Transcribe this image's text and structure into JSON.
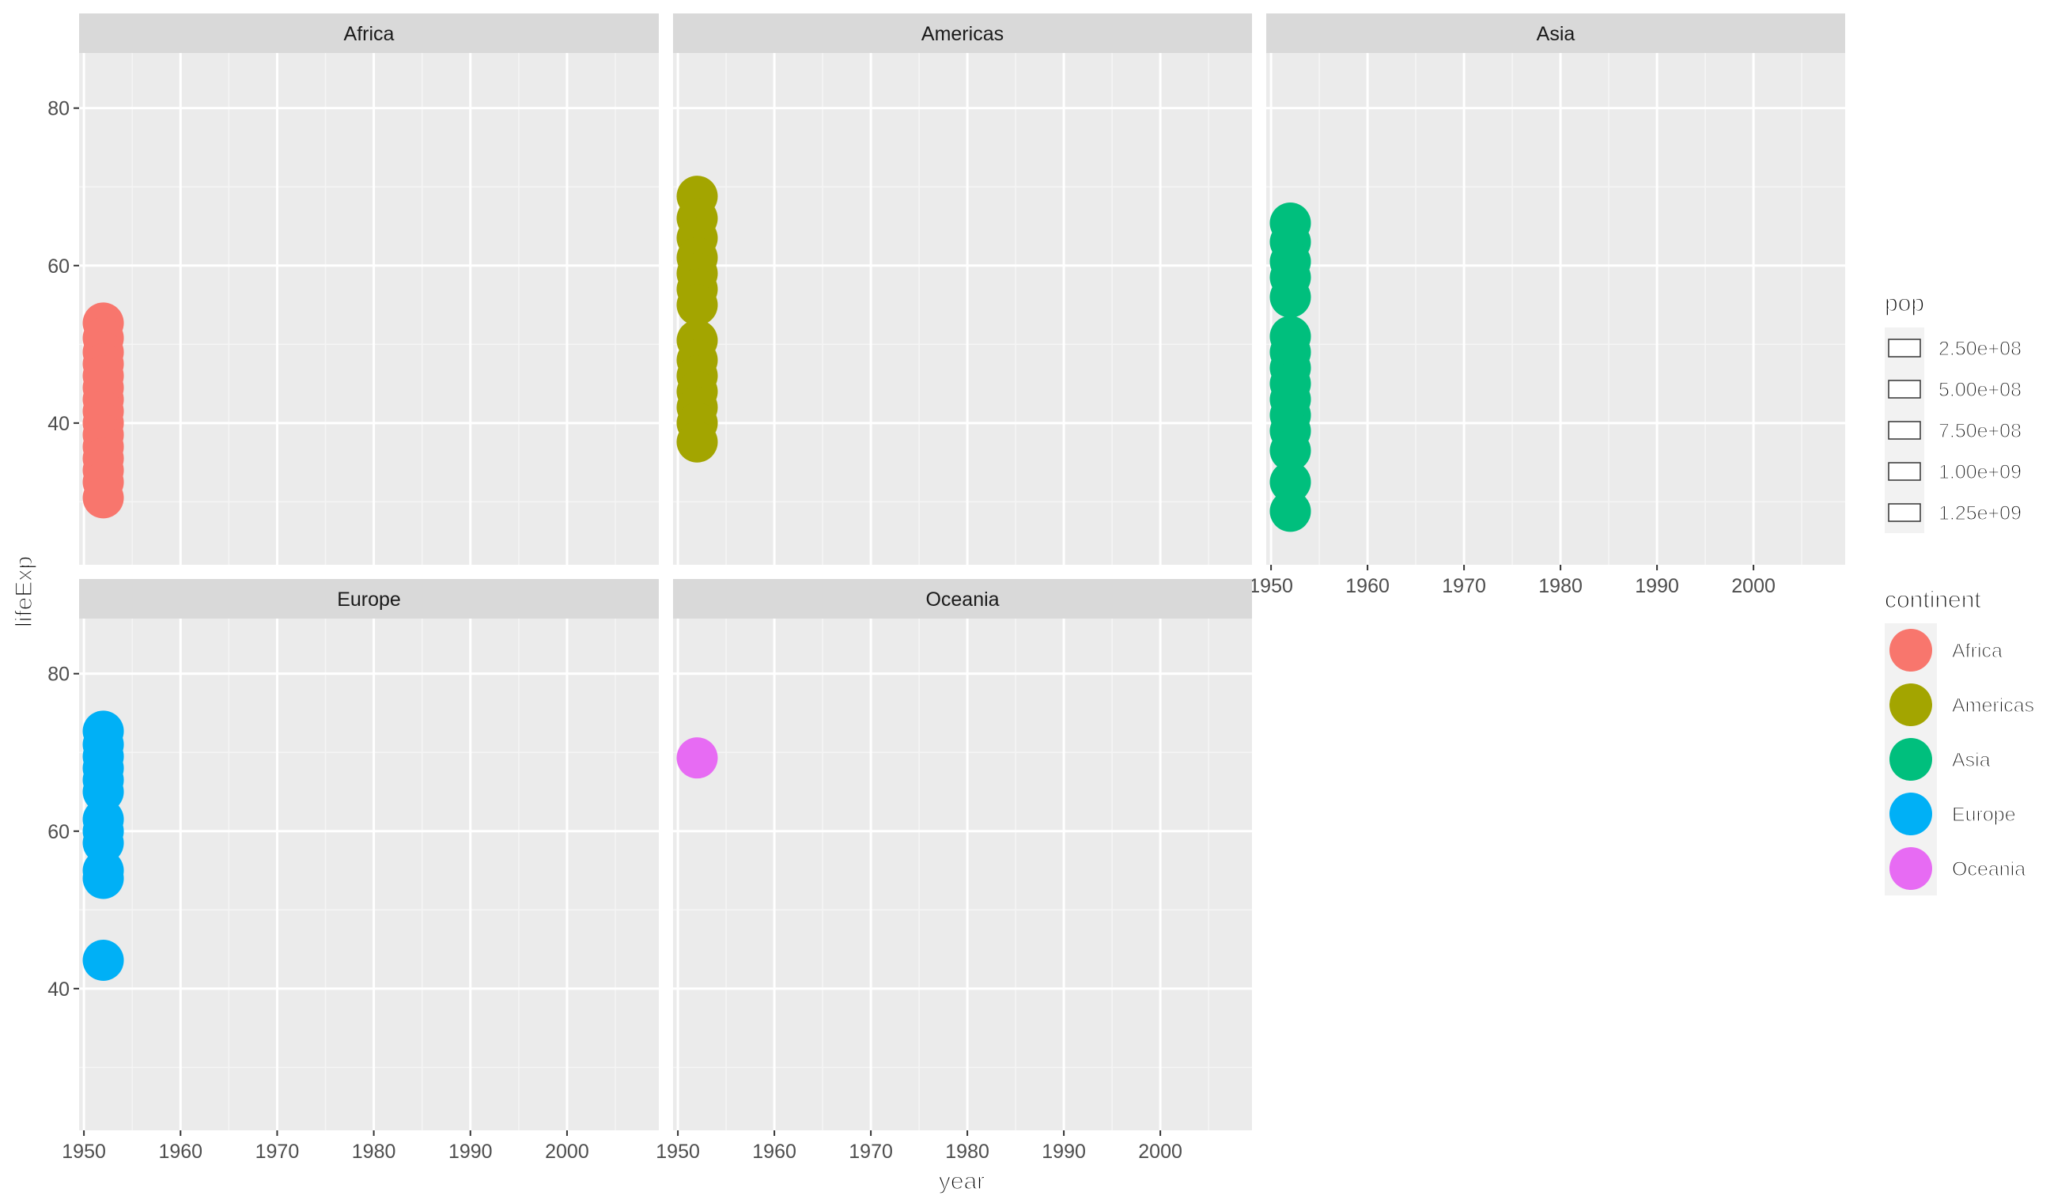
{
  "chart_data": {
    "type": "scatter",
    "facets": [
      "Africa",
      "Americas",
      "Asia",
      "Europe",
      "Oceania"
    ],
    "xlabel": "year",
    "ylabel": "lifeExp",
    "xlim": [
      1949.5,
      2009.5
    ],
    "ylim": [
      22,
      87
    ],
    "xticks": [
      1950,
      1960,
      1970,
      1980,
      1990,
      2000
    ],
    "yticks": [
      40,
      60,
      80
    ],
    "grid": true,
    "legend_position": "right",
    "size_legend": {
      "title": "pop",
      "breaks": [
        "2.50e+08",
        "5.00e+08",
        "7.50e+08",
        "1.00e+09",
        "1.25e+09"
      ]
    },
    "color_legend": {
      "title": "continent",
      "entries": [
        {
          "name": "Africa",
          "color": "#F8766D"
        },
        {
          "name": "Americas",
          "color": "#A3A500"
        },
        {
          "name": "Asia",
          "color": "#00BF7D"
        },
        {
          "name": "Europe",
          "color": "#00B0F6"
        },
        {
          "name": "Oceania",
          "color": "#E76BF3"
        }
      ]
    },
    "series": [
      {
        "facet": "Africa",
        "color": "#F8766D",
        "x": 1952,
        "y": [
          52.7,
          50.8,
          49.0,
          47.5,
          46.0,
          44.5,
          43.0,
          41.5,
          40.0,
          38.5,
          37.0,
          35.5,
          34.0,
          32.5,
          30.5
        ]
      },
      {
        "facet": "Americas",
        "color": "#A3A500",
        "x": 1952,
        "y": [
          68.8,
          66.0,
          63.5,
          61.0,
          59.0,
          57.0,
          55.0,
          50.5,
          48.0,
          46.0,
          44.0,
          42.0,
          40.0,
          37.6
        ]
      },
      {
        "facet": "Asia",
        "color": "#00BF7D",
        "x": 1952,
        "y": [
          65.4,
          63.0,
          60.5,
          58.5,
          56.0,
          51.0,
          49.0,
          47.0,
          45.0,
          43.0,
          41.0,
          39.0,
          36.5,
          32.5,
          28.8
        ]
      },
      {
        "facet": "Europe",
        "color": "#00B0F6",
        "x": 1952,
        "y": [
          72.7,
          71.0,
          69.5,
          68.0,
          66.5,
          65.0,
          61.5,
          60.0,
          58.5,
          55.0,
          54.0,
          43.6
        ]
      },
      {
        "facet": "Oceania",
        "color": "#E76BF3",
        "x": 1952,
        "y": [
          69.3
        ]
      }
    ]
  }
}
